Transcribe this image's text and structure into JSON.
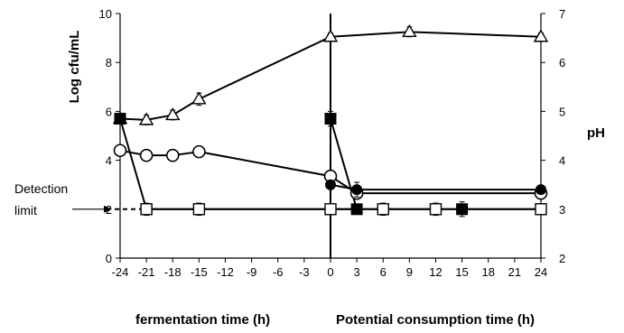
{
  "chart_data": {
    "type": "line",
    "x_ticks": [
      "-24",
      "-21",
      "-18",
      "-15",
      "-12",
      "-9",
      "-6",
      "-3",
      "0",
      "3",
      "6",
      "9",
      "12",
      "15",
      "18",
      "21",
      "24"
    ],
    "y_left": {
      "label": "Log cfu/mL",
      "min": 0,
      "max": 10,
      "ticks": [
        "0",
        "2",
        "4",
        "6",
        "8",
        "10"
      ]
    },
    "y_right": {
      "label": "pH",
      "min": 2,
      "max": 7,
      "ticks": [
        "2",
        "3",
        "4",
        "5",
        "6",
        "7"
      ]
    },
    "xlabel_left": "fermentation time (h)",
    "xlabel_right": "Potential consumption time (h)",
    "annotation": {
      "line1": "Detection",
      "line2": "limit",
      "value": 2
    },
    "divider_x": 0,
    "grid": false,
    "legend": "none",
    "series": [
      {
        "axis": "left",
        "marker": "open-triangle",
        "x": [
          -24,
          -21,
          -18,
          -15,
          0,
          9,
          24
        ],
        "y": [
          5.7,
          5.65,
          5.85,
          6.5,
          9.05,
          9.25,
          9.05
        ],
        "err": [
          0.15,
          0.2,
          0.2,
          0.25,
          0.15,
          0.2,
          0.15
        ]
      },
      {
        "axis": "left",
        "marker": "open-circle",
        "x": [
          -24,
          -21,
          -18,
          -15,
          0,
          3,
          24
        ],
        "y": [
          4.4,
          4.2,
          4.2,
          4.35,
          3.35,
          2.65,
          2.65
        ],
        "err": [
          0.15,
          0.15,
          0.15,
          0.15,
          0.2,
          0.2,
          0.15
        ]
      },
      {
        "axis": "left",
        "marker": "filled-circle",
        "x": [
          0,
          3,
          24
        ],
        "y": [
          3.0,
          2.8,
          2.8
        ],
        "err": [
          0.15,
          0.3,
          0.1
        ]
      },
      {
        "axis": "left",
        "marker": "filled-square",
        "x": [
          -24,
          -21,
          0,
          3,
          15,
          24
        ],
        "y": [
          5.7,
          2.0,
          5.7,
          2.0,
          2.0,
          2.0
        ],
        "err": [
          0.2,
          0.1,
          0.3,
          0.2,
          0.3,
          0.1
        ]
      },
      {
        "axis": "left",
        "marker": "open-square",
        "x": [
          -21,
          -15,
          0,
          6,
          12,
          24
        ],
        "y": [
          2.0,
          2.0,
          2.0,
          2.0,
          2.0,
          2.0
        ],
        "err": [
          0.25,
          0.25,
          0.2,
          0.25,
          0.25,
          0.1
        ]
      }
    ]
  }
}
